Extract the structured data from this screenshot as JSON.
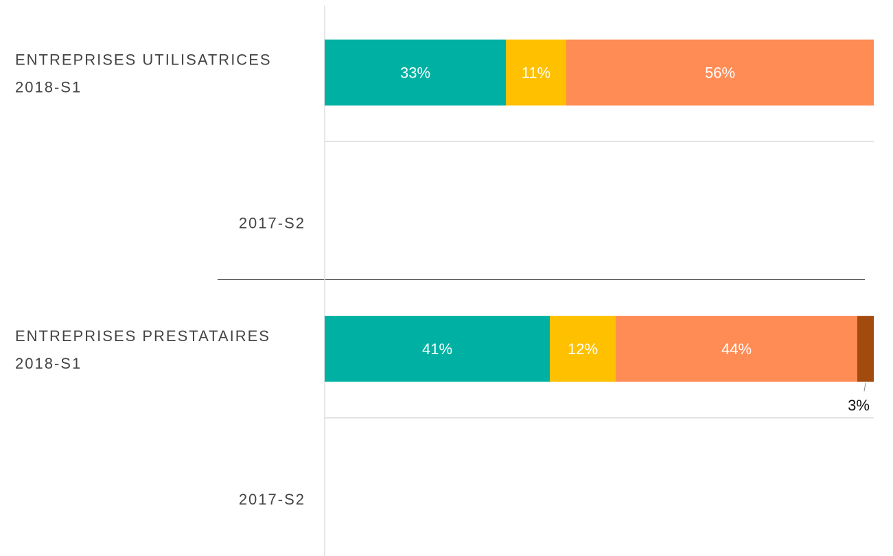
{
  "chart_data": {
    "type": "stacked_bar_horizontal",
    "groups": [
      "ENTREPRISES UTILISATRICES",
      "ENTREPRISES PRESTATAIRES"
    ],
    "categories": [
      "2018-S1",
      "2017-S2",
      "2018-S1",
      "2017-S2"
    ],
    "xlim": [
      0,
      100
    ],
    "series": [
      {
        "color": "#00b1a3",
        "values": [
          33,
          null,
          41,
          null
        ],
        "value_labels": [
          "33%",
          null,
          "41%",
          null
        ]
      },
      {
        "color": "#ffc000",
        "values": [
          11,
          null,
          12,
          null
        ],
        "value_labels": [
          "11%",
          null,
          "12%",
          null
        ]
      },
      {
        "color": "#ff8c55",
        "values": [
          56,
          null,
          44,
          null
        ],
        "value_labels": [
          "56%",
          null,
          "44%",
          null
        ]
      },
      {
        "color": "#a34a0f",
        "values": [
          null,
          null,
          3,
          null
        ],
        "value_labels": [
          null,
          null,
          "3%",
          null
        ]
      }
    ]
  }
}
